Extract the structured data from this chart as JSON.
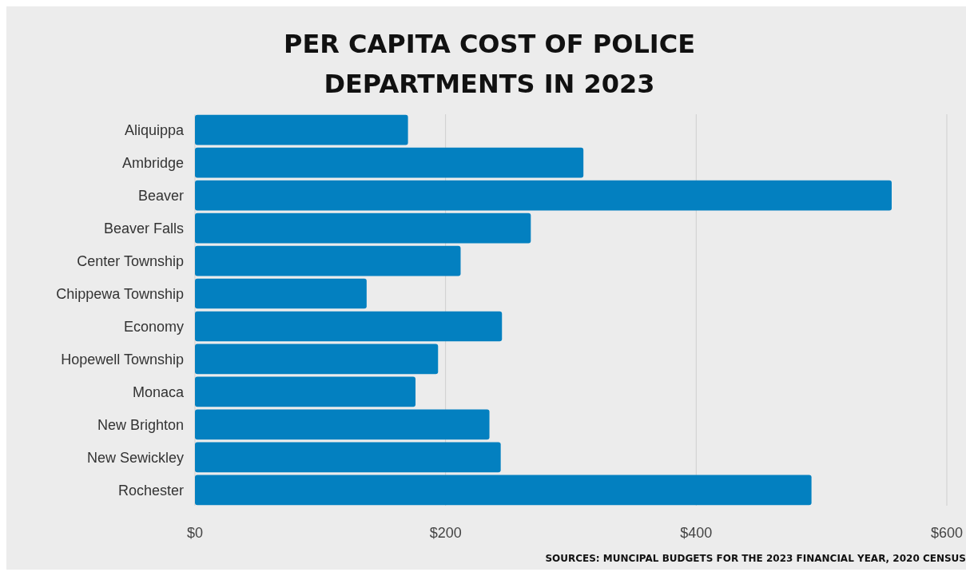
{
  "chart_data": {
    "type": "bar",
    "orientation": "horizontal",
    "title": "PER CAPITA COST OF POLICE DEPARTMENTS IN 2023",
    "categories": [
      "Aliquippa",
      "Ambridge",
      "Beaver",
      "Beaver Falls",
      "Center Township",
      "Chippewa Township",
      "Economy",
      "Hopewell Township",
      "Monaca",
      "New Brighton",
      "New Sewickley",
      "Rochester"
    ],
    "values": [
      170,
      310,
      556,
      268,
      212,
      137,
      245,
      194,
      176,
      235,
      244,
      492
    ],
    "color": "#0380c0",
    "xlim": [
      0,
      600
    ],
    "xticks": [
      {
        "value": 0,
        "label": "$0"
      },
      {
        "value": 200,
        "label": "$200"
      },
      {
        "value": 400,
        "label": "$400"
      },
      {
        "value": 600,
        "label": "$600"
      }
    ],
    "grid": "x",
    "annotations": [
      "SOURCES: MUNCIPAL BUDGETS FOR THE 2023 FINANCIAL YEAR, 2020 CENSUS"
    ]
  }
}
